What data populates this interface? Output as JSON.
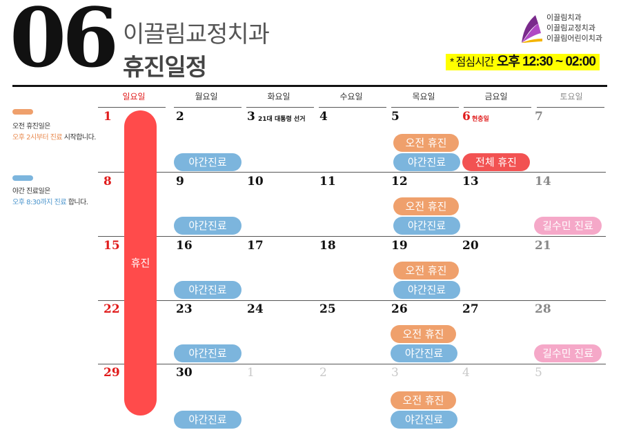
{
  "header": {
    "month": "06",
    "clinic_name": "이끌림교정치과",
    "title": "휴진일정",
    "lunch": {
      "label": "* 점심시간",
      "time": "오후 12:30 ~ 02:00"
    },
    "brand_lines": [
      "이끌림치과",
      "이끌림교정치과",
      "이끌림어린이치과"
    ]
  },
  "legend": {
    "am": {
      "color": "#efa06c",
      "line1": "오전 휴진일은",
      "line2_highlight": "오후 2시부터 진료",
      "line2_rest": " 시작합니다."
    },
    "night": {
      "color": "#7cb5dd",
      "line1": "야간 진료일은",
      "line2_highlight": "오후 8:30까지 진료",
      "line2_rest": " 합니다."
    }
  },
  "weekdays": [
    "일요일",
    "월요일",
    "화요일",
    "수요일",
    "목요일",
    "금요일",
    "토요일"
  ],
  "labels": {
    "night": "야간진료",
    "am": "오전 휴진",
    "full": "전체 휴진",
    "closed": "휴진",
    "kil": "길수민 진료"
  },
  "weeks": [
    [
      "1",
      "2",
      "3",
      "4",
      "5",
      "6",
      "7"
    ],
    [
      "8",
      "9",
      "10",
      "11",
      "12",
      "13",
      "14"
    ],
    [
      "15",
      "16",
      "17",
      "18",
      "19",
      "20",
      "21"
    ],
    [
      "22",
      "23",
      "24",
      "25",
      "26",
      "27",
      "28"
    ],
    [
      "29",
      "30",
      "1",
      "2",
      "3",
      "4",
      "5"
    ]
  ],
  "notes": {
    "election": "21대 대통령 선거",
    "memorial": "현충일"
  },
  "colors": {
    "sunday": "#e01b1b",
    "saturday": "#888888",
    "closed": "#ff4b4b"
  }
}
